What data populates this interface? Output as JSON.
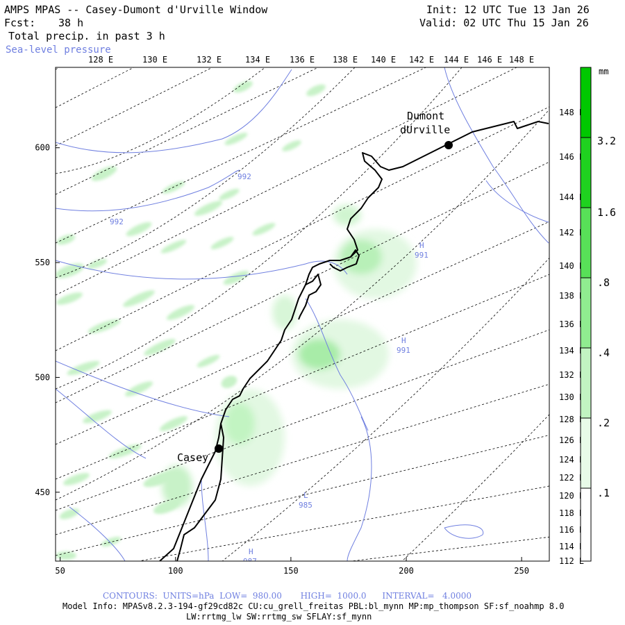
{
  "header": {
    "title": "AMPS MPAS -- Casey-Dumont d'Urville Window",
    "fcst_label": "Fcst:",
    "fcst_value": "38 h",
    "field": "Total precip. in past 3 h",
    "overlay": "Sea-level pressure",
    "init": "Init: 12 UTC Tue 13 Jan 26",
    "valid": "Valid: 02 UTC Thu 15 Jan 26"
  },
  "top_lon_labels": [
    "128 E",
    "130 E",
    "132 E",
    "134 E",
    "136 E",
    "138 E",
    "140 E",
    "142 E",
    "144 E",
    "146 E",
    "148 E"
  ],
  "right_lon_labels": [
    "148 E",
    "146 E",
    "144 E",
    "142 E",
    "140 E",
    "138 E",
    "136 E",
    "134 E",
    "132 E",
    "130 E",
    "128 E",
    "126 E",
    "124 E",
    "122 E",
    "120 E",
    "118 E",
    "116 E",
    "114 E",
    "112 E"
  ],
  "x_axis": {
    "ticks": [
      "50",
      "100",
      "150",
      "200",
      "250"
    ],
    "values": [
      50,
      100,
      150,
      200,
      250
    ],
    "range": [
      48,
      262
    ]
  },
  "y_axis": {
    "ticks": [
      "450",
      "500",
      "550",
      "600"
    ],
    "values": [
      450,
      500,
      550,
      600
    ],
    "range": [
      420,
      635
    ]
  },
  "stations": [
    {
      "name": "Casey",
      "x": 120,
      "y": 473
    },
    {
      "name_line1": "Dumont",
      "name_line2": "dUrville",
      "x": 218,
      "y": 604
    }
  ],
  "pressure_labels": [
    {
      "text": "992"
    },
    {
      "text": "992"
    },
    {
      "text": "H",
      "value": "991"
    },
    {
      "text": "H",
      "value": "991"
    },
    {
      "text": "L",
      "value": "985"
    },
    {
      "text": "H",
      "value": "987"
    }
  ],
  "colorbar": {
    "unit": "mm",
    "levels": [
      ".1",
      ".2",
      ".4",
      ".8",
      "1.6",
      "3.2"
    ],
    "colors": [
      "#ffffff",
      "#e8fbe8",
      "#c2f4c2",
      "#90ec90",
      "#58e058",
      "#1fd21f",
      "#00c800"
    ]
  },
  "footer": {
    "contours": "CONTOURS:  UNITS=hPa  LOW=  980.00       HIGH=  1000.0      INTERVAL=   4.0000",
    "model_info": "Model Info: MPASv8.2.3-194-gf29cd82c CU:cu_grell_freitas PBL:bl_mynn MP:mp_thompson SF:sf_noahmp 8.0",
    "physics": "LW:rrtmg_lw SW:rrtmg_sw SFLAY:sf_mynn"
  }
}
